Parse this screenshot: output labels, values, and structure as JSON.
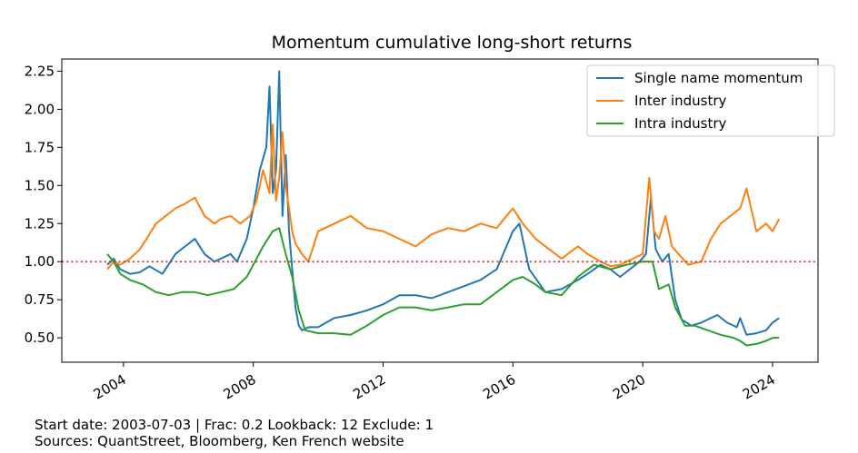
{
  "footer": {
    "line1": "Start date: 2003-07-03  |  Frac: 0.2  Lookback: 12  Exclude: 1",
    "line2": "Sources: QuantStreet, Bloomberg, Ken French website"
  },
  "chart_data": {
    "type": "line",
    "title": "Momentum cumulative long-short returns",
    "xlabel": "",
    "ylabel": "",
    "xlim": [
      2002.1,
      2025.4
    ],
    "ylim": [
      0.34,
      2.33
    ],
    "xticks": [
      2004,
      2008,
      2012,
      2016,
      2020,
      2024
    ],
    "xtick_labels": [
      "2004",
      "2008",
      "2012",
      "2016",
      "2020",
      "2024"
    ],
    "yticks": [
      0.5,
      0.75,
      1.0,
      1.25,
      1.5,
      1.75,
      2.0,
      2.25
    ],
    "ytick_labels": [
      "0.50",
      "0.75",
      "1.00",
      "1.25",
      "1.50",
      "1.75",
      "2.00",
      "2.25"
    ],
    "reference_line": {
      "y": 1.0,
      "color": "#d62728",
      "style": "dotted"
    },
    "grid": false,
    "legend_position": "top-right",
    "series": [
      {
        "name": "Single name momentum",
        "color": "#1f77b4",
        "x": [
          2003.5,
          2003.7,
          2003.9,
          2004.2,
          2004.5,
          2004.8,
          2005.2,
          2005.6,
          2005.9,
          2006.2,
          2006.5,
          2006.8,
          2007.0,
          2007.3,
          2007.5,
          2007.8,
          2008.0,
          2008.2,
          2008.4,
          2008.5,
          2008.6,
          2008.7,
          2008.8,
          2008.9,
          2009.0,
          2009.1,
          2009.2,
          2009.3,
          2009.4,
          2009.5,
          2009.7,
          2010.0,
          2010.5,
          2011.0,
          2011.5,
          2012.0,
          2012.5,
          2013.0,
          2013.5,
          2014.0,
          2014.5,
          2015.0,
          2015.5,
          2015.8,
          2016.0,
          2016.2,
          2016.5,
          2017.0,
          2017.5,
          2018.0,
          2018.3,
          2018.7,
          2019.0,
          2019.3,
          2019.6,
          2019.9,
          2020.1,
          2020.25,
          2020.4,
          2020.6,
          2020.8,
          2021.0,
          2021.2,
          2021.5,
          2021.8,
          2022.0,
          2022.3,
          2022.6,
          2022.9,
          2023.0,
          2023.2,
          2023.5,
          2023.8,
          2024.0,
          2024.2
        ],
        "y": [
          0.98,
          1.02,
          0.95,
          0.92,
          0.93,
          0.97,
          0.92,
          1.05,
          1.1,
          1.15,
          1.05,
          1.0,
          1.02,
          1.05,
          1.0,
          1.15,
          1.35,
          1.6,
          1.75,
          2.15,
          1.45,
          1.6,
          2.25,
          1.3,
          1.7,
          1.2,
          0.95,
          0.7,
          0.58,
          0.55,
          0.57,
          0.57,
          0.63,
          0.65,
          0.68,
          0.72,
          0.78,
          0.78,
          0.76,
          0.8,
          0.84,
          0.88,
          0.95,
          1.1,
          1.2,
          1.25,
          0.95,
          0.8,
          0.82,
          0.88,
          0.92,
          0.98,
          0.95,
          0.9,
          0.95,
          1.0,
          1.05,
          1.42,
          1.08,
          1.0,
          1.05,
          0.75,
          0.62,
          0.58,
          0.6,
          0.62,
          0.65,
          0.6,
          0.57,
          0.63,
          0.52,
          0.53,
          0.55,
          0.6,
          0.63
        ]
      },
      {
        "name": "Inter industry",
        "color": "#ff7f0e",
        "x": [
          2003.5,
          2003.7,
          2003.9,
          2004.2,
          2004.5,
          2004.8,
          2005.0,
          2005.3,
          2005.6,
          2005.9,
          2006.2,
          2006.5,
          2006.8,
          2007.0,
          2007.3,
          2007.6,
          2007.9,
          2008.1,
          2008.3,
          2008.5,
          2008.6,
          2008.7,
          2008.8,
          2008.9,
          2009.0,
          2009.1,
          2009.2,
          2009.3,
          2009.5,
          2009.7,
          2010.0,
          2010.5,
          2011.0,
          2011.5,
          2012.0,
          2012.5,
          2013.0,
          2013.5,
          2014.0,
          2014.5,
          2015.0,
          2015.5,
          2015.8,
          2016.0,
          2016.3,
          2016.7,
          2017.0,
          2017.5,
          2018.0,
          2018.3,
          2018.7,
          2019.0,
          2019.3,
          2019.7,
          2020.0,
          2020.2,
          2020.35,
          2020.5,
          2020.7,
          2020.9,
          2021.1,
          2021.4,
          2021.8,
          2022.1,
          2022.4,
          2022.7,
          2023.0,
          2023.2,
          2023.5,
          2023.8,
          2024.0,
          2024.2
        ],
        "y": [
          0.95,
          1.0,
          0.98,
          1.02,
          1.08,
          1.18,
          1.25,
          1.3,
          1.35,
          1.38,
          1.42,
          1.3,
          1.25,
          1.28,
          1.3,
          1.25,
          1.3,
          1.4,
          1.6,
          1.45,
          1.9,
          1.4,
          1.55,
          1.85,
          1.5,
          1.35,
          1.2,
          1.12,
          1.05,
          1.0,
          1.2,
          1.25,
          1.3,
          1.22,
          1.2,
          1.15,
          1.1,
          1.18,
          1.22,
          1.2,
          1.25,
          1.22,
          1.3,
          1.35,
          1.25,
          1.15,
          1.1,
          1.02,
          1.1,
          1.05,
          1.0,
          0.97,
          0.98,
          1.02,
          1.05,
          1.55,
          1.2,
          1.15,
          1.3,
          1.1,
          1.05,
          0.98,
          1.0,
          1.15,
          1.25,
          1.3,
          1.35,
          1.48,
          1.2,
          1.25,
          1.2,
          1.28
        ]
      },
      {
        "name": "Intra industry",
        "color": "#2ca02c",
        "x": [
          2003.5,
          2003.7,
          2003.9,
          2004.2,
          2004.6,
          2005.0,
          2005.4,
          2005.8,
          2006.2,
          2006.6,
          2007.0,
          2007.4,
          2007.8,
          2008.0,
          2008.3,
          2008.6,
          2008.8,
          2009.0,
          2009.2,
          2009.4,
          2009.6,
          2010.0,
          2010.5,
          2011.0,
          2011.5,
          2012.0,
          2012.5,
          2013.0,
          2013.5,
          2014.0,
          2014.5,
          2015.0,
          2015.5,
          2016.0,
          2016.3,
          2016.7,
          2017.0,
          2017.5,
          2018.0,
          2018.5,
          2019.0,
          2019.5,
          2020.0,
          2020.3,
          2020.5,
          2020.8,
          2021.0,
          2021.3,
          2021.6,
          2022.0,
          2022.4,
          2022.8,
          2023.0,
          2023.2,
          2023.5,
          2023.8,
          2024.0,
          2024.2
        ],
        "y": [
          1.05,
          1.0,
          0.92,
          0.88,
          0.85,
          0.8,
          0.78,
          0.8,
          0.8,
          0.78,
          0.8,
          0.82,
          0.9,
          0.98,
          1.1,
          1.2,
          1.22,
          1.05,
          0.9,
          0.68,
          0.55,
          0.53,
          0.53,
          0.52,
          0.58,
          0.65,
          0.7,
          0.7,
          0.68,
          0.7,
          0.72,
          0.72,
          0.8,
          0.88,
          0.9,
          0.85,
          0.8,
          0.78,
          0.9,
          0.98,
          0.95,
          0.98,
          1.0,
          1.0,
          0.82,
          0.85,
          0.7,
          0.58,
          0.58,
          0.55,
          0.52,
          0.5,
          0.48,
          0.45,
          0.46,
          0.48,
          0.5,
          0.5
        ]
      }
    ]
  }
}
